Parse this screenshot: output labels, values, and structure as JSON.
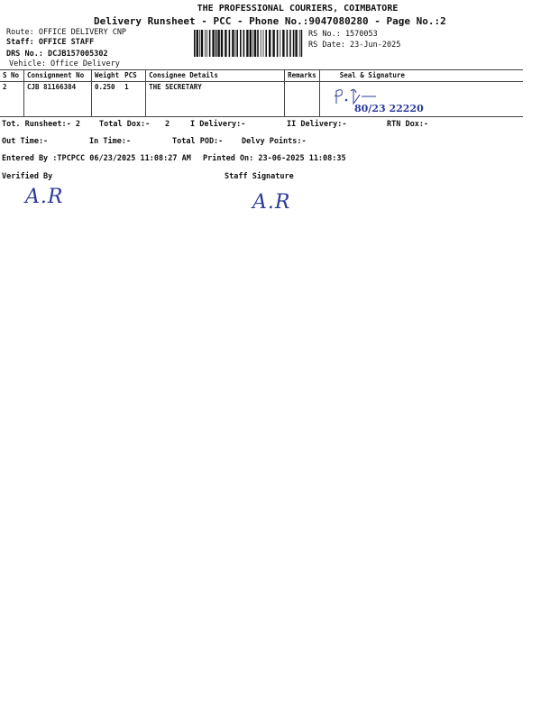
{
  "header": {
    "company": "THE PROFESSIONAL COURIERS, COIMBATORE",
    "title": "Delivery Runsheet - PCC - Phone No.:9047080280 - Page No.:2",
    "route": "Route: OFFICE DELIVERY CNP",
    "staff": "Staff: OFFICE STAFF",
    "drs": "DRS No.: DCJB157005302",
    "vehicle": "Vehicle: Office Delivery",
    "rs_no": "RS No.: 1570053",
    "rs_date": "RS Date: 23-Jun-2025"
  },
  "table": {
    "columns": [
      "S No",
      "Consignment No",
      "Weight",
      "PCS",
      "Consignee Details",
      "Remarks",
      "Seal & Signature"
    ],
    "rows": [
      {
        "sno": "2",
        "consignment": "CJB 81166384",
        "weight": "0.250",
        "pcs": "1",
        "consignee": "THE SECRETARY",
        "remarks": ""
      }
    ]
  },
  "totals": {
    "tot_runsheet": "Tot. Runsheet:- 2",
    "total_dox": "Total Dox:-",
    "total_dox_val": "2",
    "i_delivery": "I Delivery:-",
    "ii_delivery": "II Delivery:-",
    "rtn_dox": "RTN Dox:-",
    "out_time": "Out Time:-",
    "in_time": "In Time:-",
    "total_pod": "Total POD:-",
    "delvy_points": "Delvy Points:-"
  },
  "footer": {
    "entered_by": "Entered By :TPCPCC 06/23/2025 11:08:27 AM",
    "printed_on": "Printed On: 23-06-2025 11:08:35",
    "verified_by": "Verified By",
    "staff_signature": "Staff Signature"
  },
  "handwriting": {
    "seal_signature": "P.T 80/23 22220",
    "verified_sig": "A.R",
    "staff_sig": "A.R"
  },
  "colors": {
    "ink": "#2a3a9a"
  }
}
